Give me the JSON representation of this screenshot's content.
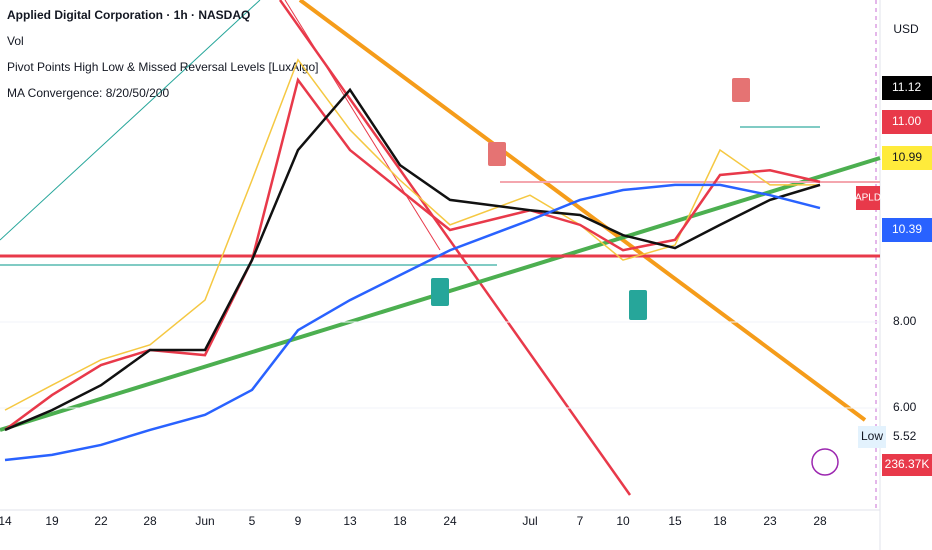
{
  "chart_data": {
    "type": "line",
    "title": "Applied Digital Corporation · 1h · NASDAQ",
    "legend_lines": [
      "Vol",
      "Pivot Points High Low & Missed Reversal Levels [LuxAlgo]",
      "MA Convergence: 8/20/50/200"
    ],
    "categories": [
      "14",
      "19",
      "22",
      "28",
      "Jun",
      "5",
      "9",
      "13",
      "18",
      "24",
      "Jul",
      "7",
      "10",
      "15",
      "18",
      "23",
      "28"
    ],
    "series": [
      {
        "color": "#f5c842",
        "values": [
          5.95,
          6.53,
          7.12,
          7.47,
          8.51,
          11.3,
          14.1,
          12.47,
          11.3,
          10.26,
          10.95,
          10.26,
          9.44,
          9.79,
          12.0,
          11.19,
          11.19
        ]
      },
      {
        "color": "#e8394a",
        "values": [
          5.49,
          6.3,
          7.0,
          7.35,
          7.23,
          9.44,
          13.63,
          12.0,
          11.07,
          10.14,
          10.6,
          10.26,
          9.67,
          9.91,
          11.42,
          11.53,
          11.26
        ]
      },
      {
        "color": "#111111",
        "values": [
          5.49,
          5.95,
          6.53,
          7.35,
          7.35,
          9.44,
          12.0,
          13.4,
          11.65,
          10.84,
          10.6,
          10.49,
          10.02,
          9.72,
          10.26,
          10.84,
          11.19
        ]
      },
      {
        "color": "#2962ff",
        "values": [
          4.79,
          4.91,
          5.14,
          5.49,
          5.84,
          6.42,
          7.81,
          8.51,
          9.09,
          9.67,
          10.37,
          10.84,
          11.07,
          11.19,
          11.19,
          10.95,
          10.65
        ]
      }
    ],
    "ylim": [
      3.86,
      15.49
    ],
    "yticks": [
      {
        "value": 6,
        "label": "6.00"
      },
      {
        "value": 8,
        "label": "8.00"
      }
    ],
    "currency": "USD",
    "symbol": "APLD",
    "price_labels": [
      {
        "label": "11.12",
        "color": "#000000"
      },
      {
        "label": "11.00",
        "color": "#e8394a"
      },
      {
        "label": "10.99",
        "color": "#ffeb3b"
      },
      {
        "label": "10.39",
        "color": "#2962ff"
      }
    ],
    "low_label": "Low",
    "low_value": "5.52",
    "volume_label": "236.37K"
  }
}
